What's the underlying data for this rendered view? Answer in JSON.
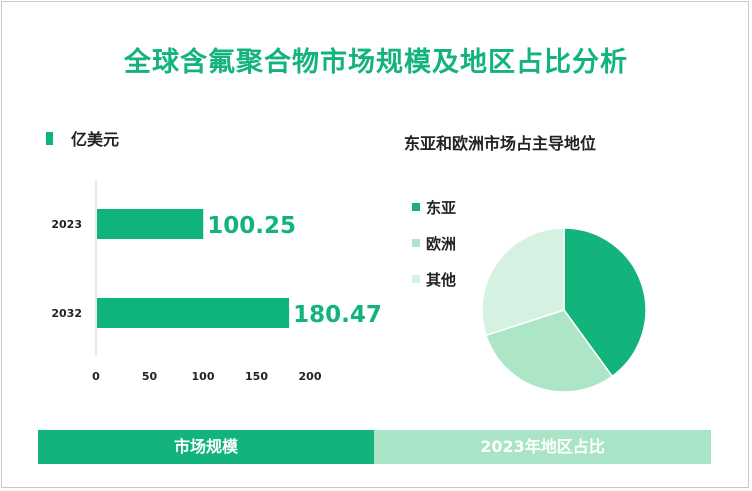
{
  "title": "全球含氟聚合物市场规模及地区占比分析",
  "colors": {
    "accent": "#12b47c",
    "bar": "#0eb47a",
    "tab_right": "#a9e4c6"
  },
  "chart_data": [
    {
      "type": "bar",
      "orientation": "horizontal",
      "legend": "亿美元",
      "categories": [
        "2023",
        "2032"
      ],
      "values": [
        100.25,
        180.47
      ],
      "value_labels": [
        "100.25",
        "180.47"
      ],
      "xlim": [
        0,
        200
      ],
      "xticks": [
        "0",
        "50",
        "100",
        "150",
        "200"
      ]
    },
    {
      "type": "pie",
      "title": "东亚和欧洲市场占主导地位",
      "labels": [
        "东亚",
        "欧洲",
        "其他"
      ],
      "values": [
        40,
        30,
        30
      ],
      "colors": [
        "#12b47c",
        "#ade6c7",
        "#d4f1e1"
      ]
    }
  ],
  "tabs": {
    "left": "市场规模",
    "right": "2023年地区占比"
  }
}
